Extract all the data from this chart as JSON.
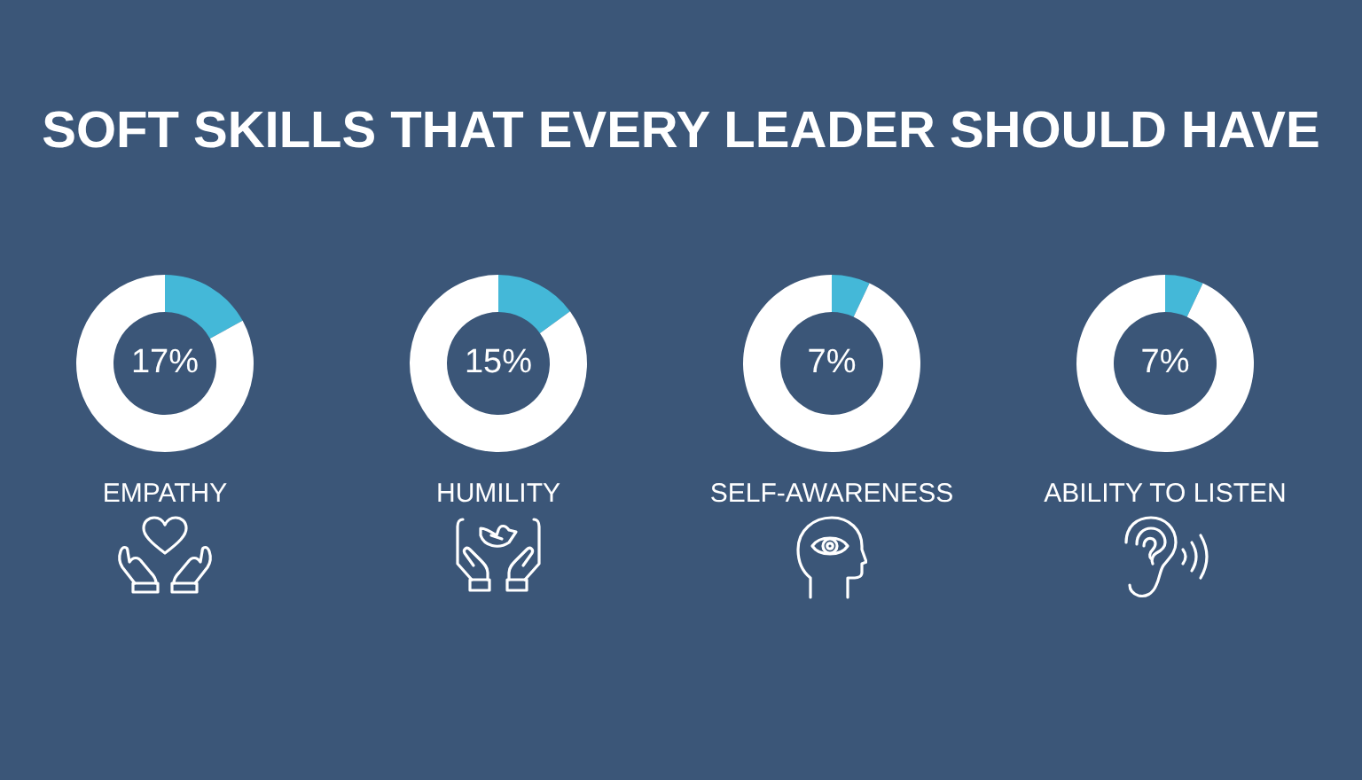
{
  "chart_data": [
    {
      "type": "donut",
      "title": "SOFT SKILLS THAT EVERY LEADER SHOULD HAVE",
      "xlabel": "EMPATHY",
      "categories": [
        null,
        null
      ],
      "values": [
        17,
        83
      ],
      "colors": [
        "#44b8d8",
        "#ffffff"
      ],
      "value_labels": [
        "17%",
        null
      ]
    },
    {
      "type": "donut",
      "xlabel": "HUMILITY",
      "categories": [
        null,
        null
      ],
      "values": [
        15,
        85
      ],
      "colors": [
        "#44b8d8",
        "#ffffff"
      ],
      "value_labels": [
        "15%",
        null
      ]
    },
    {
      "type": "donut",
      "xlabel": "SELF-AWARENESS",
      "categories": [
        null,
        null
      ],
      "values": [
        7,
        93
      ],
      "colors": [
        "#44b8d8",
        "#ffffff"
      ],
      "value_labels": [
        "7%",
        null
      ]
    },
    {
      "type": "donut",
      "xlabel": "ABILITY TO LISTEN",
      "categories": [
        null,
        null
      ],
      "values": [
        7,
        93
      ],
      "colors": [
        "#44b8d8",
        "#ffffff"
      ],
      "value_labels": [
        "7%",
        null
      ]
    }
  ]
}
